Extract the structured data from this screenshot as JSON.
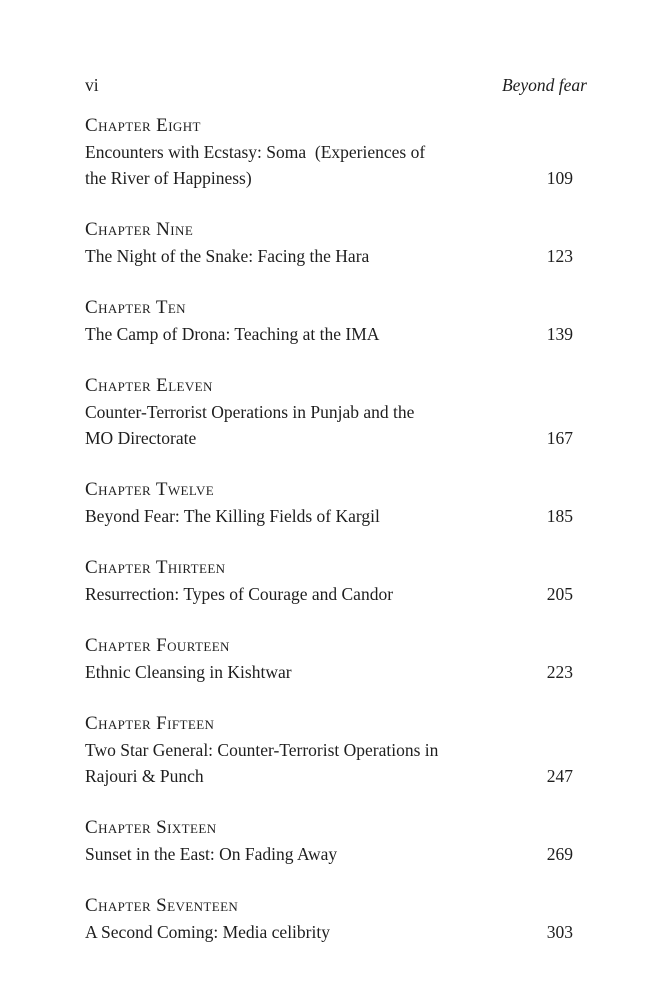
{
  "page_header": {
    "page_number": "vi",
    "book_title": "Beyond fear"
  },
  "toc": {
    "entries": [
      {
        "heading": "Chapter Eight",
        "title_lines": [
          "Encounters with Ecstasy: Soma  (Experiences of",
          "the River of Happiness)"
        ],
        "page": "109"
      },
      {
        "heading": "Chapter Nine",
        "title_lines": [
          "The Night of the Snake: Facing the Hara"
        ],
        "page": "123"
      },
      {
        "heading": "Chapter Ten",
        "title_lines": [
          "The Camp of Drona: Teaching at the IMA"
        ],
        "page": "139"
      },
      {
        "heading": "Chapter Eleven",
        "title_lines": [
          "Counter-Terrorist Operations in Punjab and the",
          "MO Directorate"
        ],
        "page": "167"
      },
      {
        "heading": "Chapter Twelve",
        "title_lines": [
          "Beyond Fear: The Killing Fields of Kargil"
        ],
        "page": "185"
      },
      {
        "heading": "Chapter Thirteen",
        "title_lines": [
          "Resurrection: Types of Courage and Candor"
        ],
        "page": "205"
      },
      {
        "heading": "Chapter Fourteen",
        "title_lines": [
          "Ethnic Cleansing in Kishtwar"
        ],
        "page": "223"
      },
      {
        "heading": "Chapter Fifteen",
        "title_lines": [
          "Two Star General: Counter-Terrorist Operations in",
          "Rajouri & Punch"
        ],
        "page": "247"
      },
      {
        "heading": "Chapter Sixteen",
        "title_lines": [
          "Sunset in the East: On Fading Away"
        ],
        "page": "269"
      },
      {
        "heading": "Chapter Seventeen",
        "title_lines": [
          "A Second Coming: Media celibrity"
        ],
        "page": "303"
      }
    ]
  },
  "colors": {
    "page_background": "#ffffff",
    "text": "#1e1e1e"
  }
}
